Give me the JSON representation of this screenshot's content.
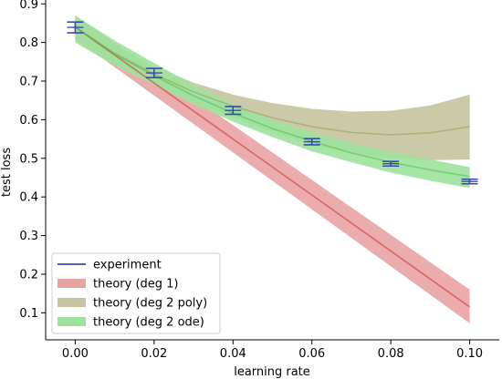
{
  "chart_data": {
    "type": "line",
    "xlabel": "learning rate",
    "ylabel": "test loss",
    "xlim": [
      -0.0075,
      0.1075
    ],
    "ylim": [
      0.03,
      0.91
    ],
    "xticks": [
      0.0,
      0.02,
      0.04,
      0.06,
      0.08,
      0.1
    ],
    "xtick_labels": [
      "0.00",
      "0.02",
      "0.04",
      "0.06",
      "0.08",
      "0.10"
    ],
    "yticks": [
      0.1,
      0.2,
      0.3,
      0.4,
      0.5,
      0.6,
      0.7,
      0.8,
      0.9
    ],
    "ytick_labels": [
      "0.1",
      "0.2",
      "0.3",
      "0.4",
      "0.5",
      "0.6",
      "0.7",
      "0.8",
      "0.9"
    ],
    "grid": false,
    "legend_placement": "lower-left",
    "series": [
      {
        "name": "experiment",
        "kind": "errorbar",
        "color": "#3b49b5",
        "x": [
          0.0,
          0.02,
          0.04,
          0.06,
          0.08,
          0.1
        ],
        "y": [
          0.839,
          0.721,
          0.624,
          0.543,
          0.486,
          0.44
        ],
        "err": [
          0.014,
          0.012,
          0.01,
          0.008,
          0.006,
          0.006
        ]
      },
      {
        "name": "theory (deg 1)",
        "kind": "band",
        "color": "#d62728",
        "fill": "#e8a3a3",
        "x": [
          0.0,
          0.1
        ],
        "y": [
          0.84,
          0.115
        ],
        "lower": [
          0.81,
          0.073
        ],
        "upper": [
          0.87,
          0.16
        ]
      },
      {
        "name": "theory (deg 2 poly)",
        "kind": "band",
        "color": "#9a9a5a",
        "fill": "#c4c4a0",
        "x": [
          0.0,
          0.01,
          0.02,
          0.03,
          0.04,
          0.05,
          0.06,
          0.07,
          0.08,
          0.09,
          0.1
        ],
        "y": [
          0.84,
          0.772,
          0.718,
          0.672,
          0.635,
          0.605,
          0.582,
          0.567,
          0.561,
          0.566,
          0.582
        ],
        "lower": [
          0.82,
          0.752,
          0.698,
          0.648,
          0.605,
          0.567,
          0.535,
          0.513,
          0.5,
          0.495,
          0.497
        ],
        "upper": [
          0.86,
          0.792,
          0.738,
          0.696,
          0.665,
          0.643,
          0.628,
          0.621,
          0.623,
          0.637,
          0.665
        ]
      },
      {
        "name": "theory (deg 2 ode)",
        "kind": "band",
        "color": "#4dbd4d",
        "fill": "#9de29d",
        "x": [
          0.0,
          0.01,
          0.02,
          0.03,
          0.04,
          0.05,
          0.06,
          0.07,
          0.08,
          0.09,
          0.1
        ],
        "y": [
          0.84,
          0.77,
          0.714,
          0.662,
          0.617,
          0.577,
          0.544,
          0.514,
          0.49,
          0.47,
          0.453
        ],
        "lower": [
          0.8,
          0.74,
          0.69,
          0.64,
          0.595,
          0.555,
          0.518,
          0.49,
          0.463,
          0.442,
          0.423
        ],
        "upper": [
          0.87,
          0.805,
          0.747,
          0.69,
          0.64,
          0.6,
          0.568,
          0.54,
          0.517,
          0.497,
          0.477
        ]
      }
    ]
  }
}
